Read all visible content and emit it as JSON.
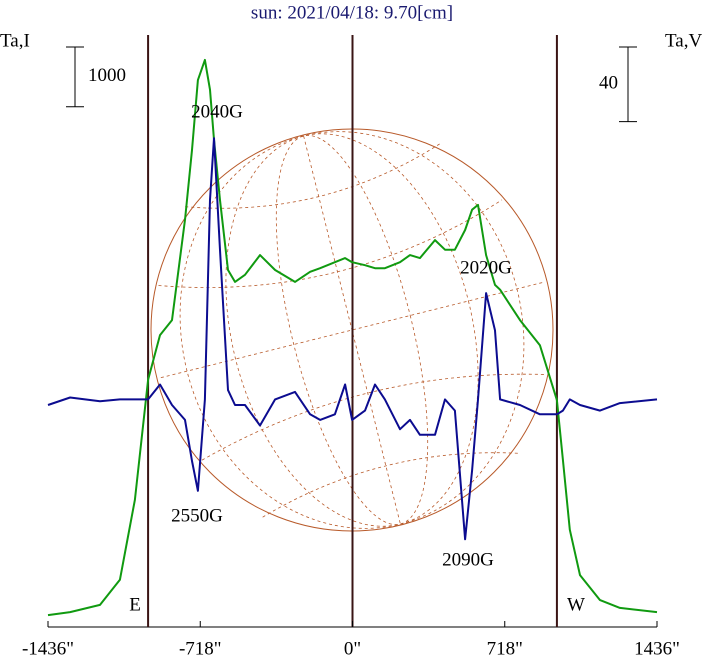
{
  "chart_data": {
    "type": "line",
    "title": "sun: 2021/04/18: 9.70[cm]",
    "y_label": "Ta,I",
    "y2_label": "Ta,V",
    "x": [
      -1436,
      -1332,
      -1191,
      -1097,
      -1026,
      -964,
      -908,
      -851,
      -790,
      -757,
      -729,
      -696,
      -672,
      -653,
      -625,
      -587,
      -554,
      -507,
      -436,
      -365,
      -271,
      -200,
      -153,
      -83,
      -35,
      -2,
      59,
      106,
      153,
      224,
      271,
      318,
      389,
      436,
      483,
      531,
      564,
      592,
      630,
      672,
      696,
      790,
      884,
      964,
      992,
      1025,
      1073,
      1167,
      1261,
      1436
    ],
    "series": [
      {
        "name": "Ta,I",
        "color": "#109a10",
        "values": [
          200,
          250,
          370,
          790,
          2130,
          4140,
          4890,
          5140,
          6820,
          7990,
          9160,
          9500,
          9000,
          8160,
          7150,
          5980,
          5780,
          5900,
          6230,
          5980,
          5780,
          5950,
          6010,
          6110,
          6180,
          6110,
          6060,
          6010,
          6010,
          6110,
          6230,
          6180,
          6480,
          6320,
          6320,
          6650,
          6990,
          7070,
          6230,
          5730,
          5650,
          5140,
          4720,
          3800,
          2800,
          1630,
          870,
          450,
          320,
          250
        ]
      },
      {
        "name": "Ta,V",
        "color": "#0c0c90",
        "axis": "y2",
        "values": [
          -1,
          3,
          1,
          2,
          2,
          2,
          10,
          -1,
          -9,
          -31,
          -47,
          2,
          109,
          142,
          82,
          7,
          -1,
          -1,
          -12,
          2,
          6,
          -6,
          -9,
          -6,
          10,
          -9,
          -4,
          10,
          2,
          -14,
          -9,
          -17,
          -17,
          2,
          -4,
          -73,
          -36,
          2,
          59,
          39,
          2,
          -1,
          -6,
          -6,
          -4,
          2,
          -1,
          -4,
          0,
          2
        ]
      }
    ],
    "xlim": [
      -1436,
      1436
    ],
    "xticks": [
      {
        "value": -1436,
        "label": "-1436\""
      },
      {
        "value": -718,
        "label": "-718\""
      },
      {
        "value": 0,
        "label": "0\""
      },
      {
        "value": 718,
        "label": "718\""
      },
      {
        "value": 1436,
        "label": "1436\""
      }
    ],
    "ylim": [
      0,
      10000
    ],
    "y2lim": [
      -120,
      200
    ],
    "vlines": [
      -964,
      0,
      964
    ],
    "scale_bars": [
      {
        "axis": "y",
        "value": 1000
      },
      {
        "axis": "y2",
        "value": 40
      }
    ],
    "annotations": [
      "2040G",
      "2020G",
      "2550G",
      "2090G",
      "E",
      "W"
    ]
  }
}
